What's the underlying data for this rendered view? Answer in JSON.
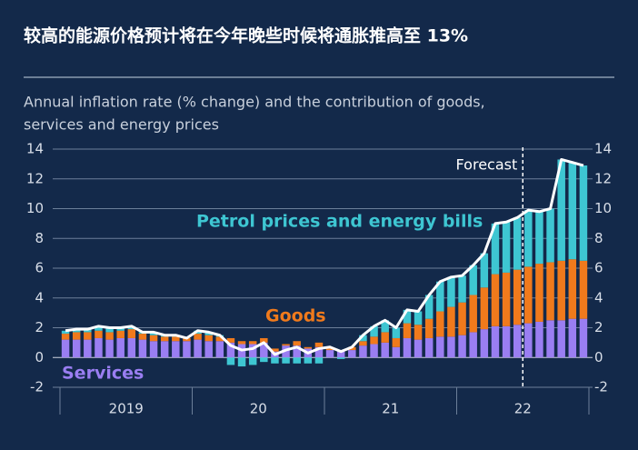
{
  "chart_data": {
    "type": "stacked-bar-line",
    "title": "较高的能源价格预计将在今年晚些时候将通胀推高至 13%",
    "subtitle": [
      "Annual inflation rate (% change) and the contribution of goods,",
      "services and energy prices"
    ],
    "categories": [
      null,
      null,
      null,
      null,
      null,
      null,
      null,
      null,
      null,
      null,
      null,
      null,
      null,
      null,
      null,
      null,
      null,
      null,
      null,
      null,
      null,
      null,
      null,
      null,
      null,
      null,
      null,
      null,
      null,
      null,
      null,
      null,
      null,
      null,
      null,
      null,
      null,
      null,
      null,
      null,
      null,
      null,
      null,
      null,
      null,
      null,
      null,
      null
    ],
    "year_labels": [
      "2019",
      "20",
      "21",
      "22"
    ],
    "series": [
      {
        "name": "Services",
        "color": "#9a7ef2",
        "values": [
          1.2,
          1.2,
          1.2,
          1.3,
          1.2,
          1.3,
          1.3,
          1.2,
          1.1,
          1.1,
          1.1,
          1.1,
          1.2,
          1.1,
          1.1,
          1.0,
          0.9,
          0.9,
          1.0,
          0.4,
          0.8,
          0.8,
          0.6,
          0.7,
          0.5,
          0.4,
          0.5,
          0.8,
          0.9,
          1.0,
          0.7,
          1.3,
          1.2,
          1.3,
          1.4,
          1.4,
          1.5,
          1.7,
          1.9,
          2.1,
          2.1,
          2.2,
          2.3,
          2.4,
          2.5,
          2.5,
          2.6,
          2.6
        ]
      },
      {
        "name": "Goods",
        "color": "#f07a1c",
        "values": [
          0.4,
          0.5,
          0.5,
          0.5,
          0.5,
          0.5,
          0.6,
          0.4,
          0.4,
          0.3,
          0.3,
          0.2,
          0.4,
          0.4,
          0.3,
          0.3,
          0.2,
          0.2,
          0.3,
          0.2,
          0.1,
          0.3,
          0.1,
          0.3,
          0.2,
          0.1,
          0.2,
          0.3,
          0.5,
          0.7,
          0.6,
          1.0,
          1.0,
          1.3,
          1.7,
          2.0,
          2.2,
          2.5,
          2.8,
          3.5,
          3.6,
          3.7,
          3.8,
          3.9,
          3.9,
          4.0,
          4.0,
          3.9
        ]
      },
      {
        "name": "Petrol prices and energy bills",
        "color": "#3ec6d2",
        "values": [
          0.2,
          0.2,
          0.2,
          0.3,
          0.3,
          0.2,
          0.2,
          0.1,
          0.2,
          0.1,
          0.1,
          0.0,
          0.2,
          0.2,
          0.1,
          -0.5,
          -0.6,
          -0.5,
          -0.3,
          -0.4,
          -0.4,
          -0.4,
          -0.4,
          -0.4,
          0.0,
          -0.1,
          0.0,
          0.4,
          0.7,
          0.8,
          0.7,
          0.9,
          0.9,
          1.6,
          2.0,
          2.0,
          1.8,
          2.0,
          2.3,
          3.4,
          3.4,
          3.5,
          3.8,
          3.5,
          3.6,
          6.8,
          6.5,
          6.4
        ]
      }
    ],
    "total": {
      "color": "#ffffff",
      "values": [
        1.8,
        1.9,
        1.9,
        2.1,
        2.0,
        2.0,
        2.1,
        1.7,
        1.7,
        1.5,
        1.5,
        1.3,
        1.8,
        1.7,
        1.5,
        0.8,
        0.5,
        0.6,
        1.0,
        0.2,
        0.5,
        0.7,
        0.3,
        0.6,
        0.7,
        0.4,
        0.7,
        1.5,
        2.1,
        2.5,
        2.0,
        3.2,
        3.1,
        4.2,
        5.1,
        5.4,
        5.5,
        6.2,
        7.0,
        9.0,
        9.1,
        9.4,
        9.9,
        9.8,
        10.0,
        13.3,
        13.1,
        12.9
      ]
    },
    "forecast": {
      "label": "Forecast",
      "after_index": 41
    },
    "ylim": [
      -2,
      14
    ],
    "yticks": [
      -2,
      0,
      2,
      4,
      6,
      8,
      10,
      12,
      14
    ],
    "grid": true
  }
}
